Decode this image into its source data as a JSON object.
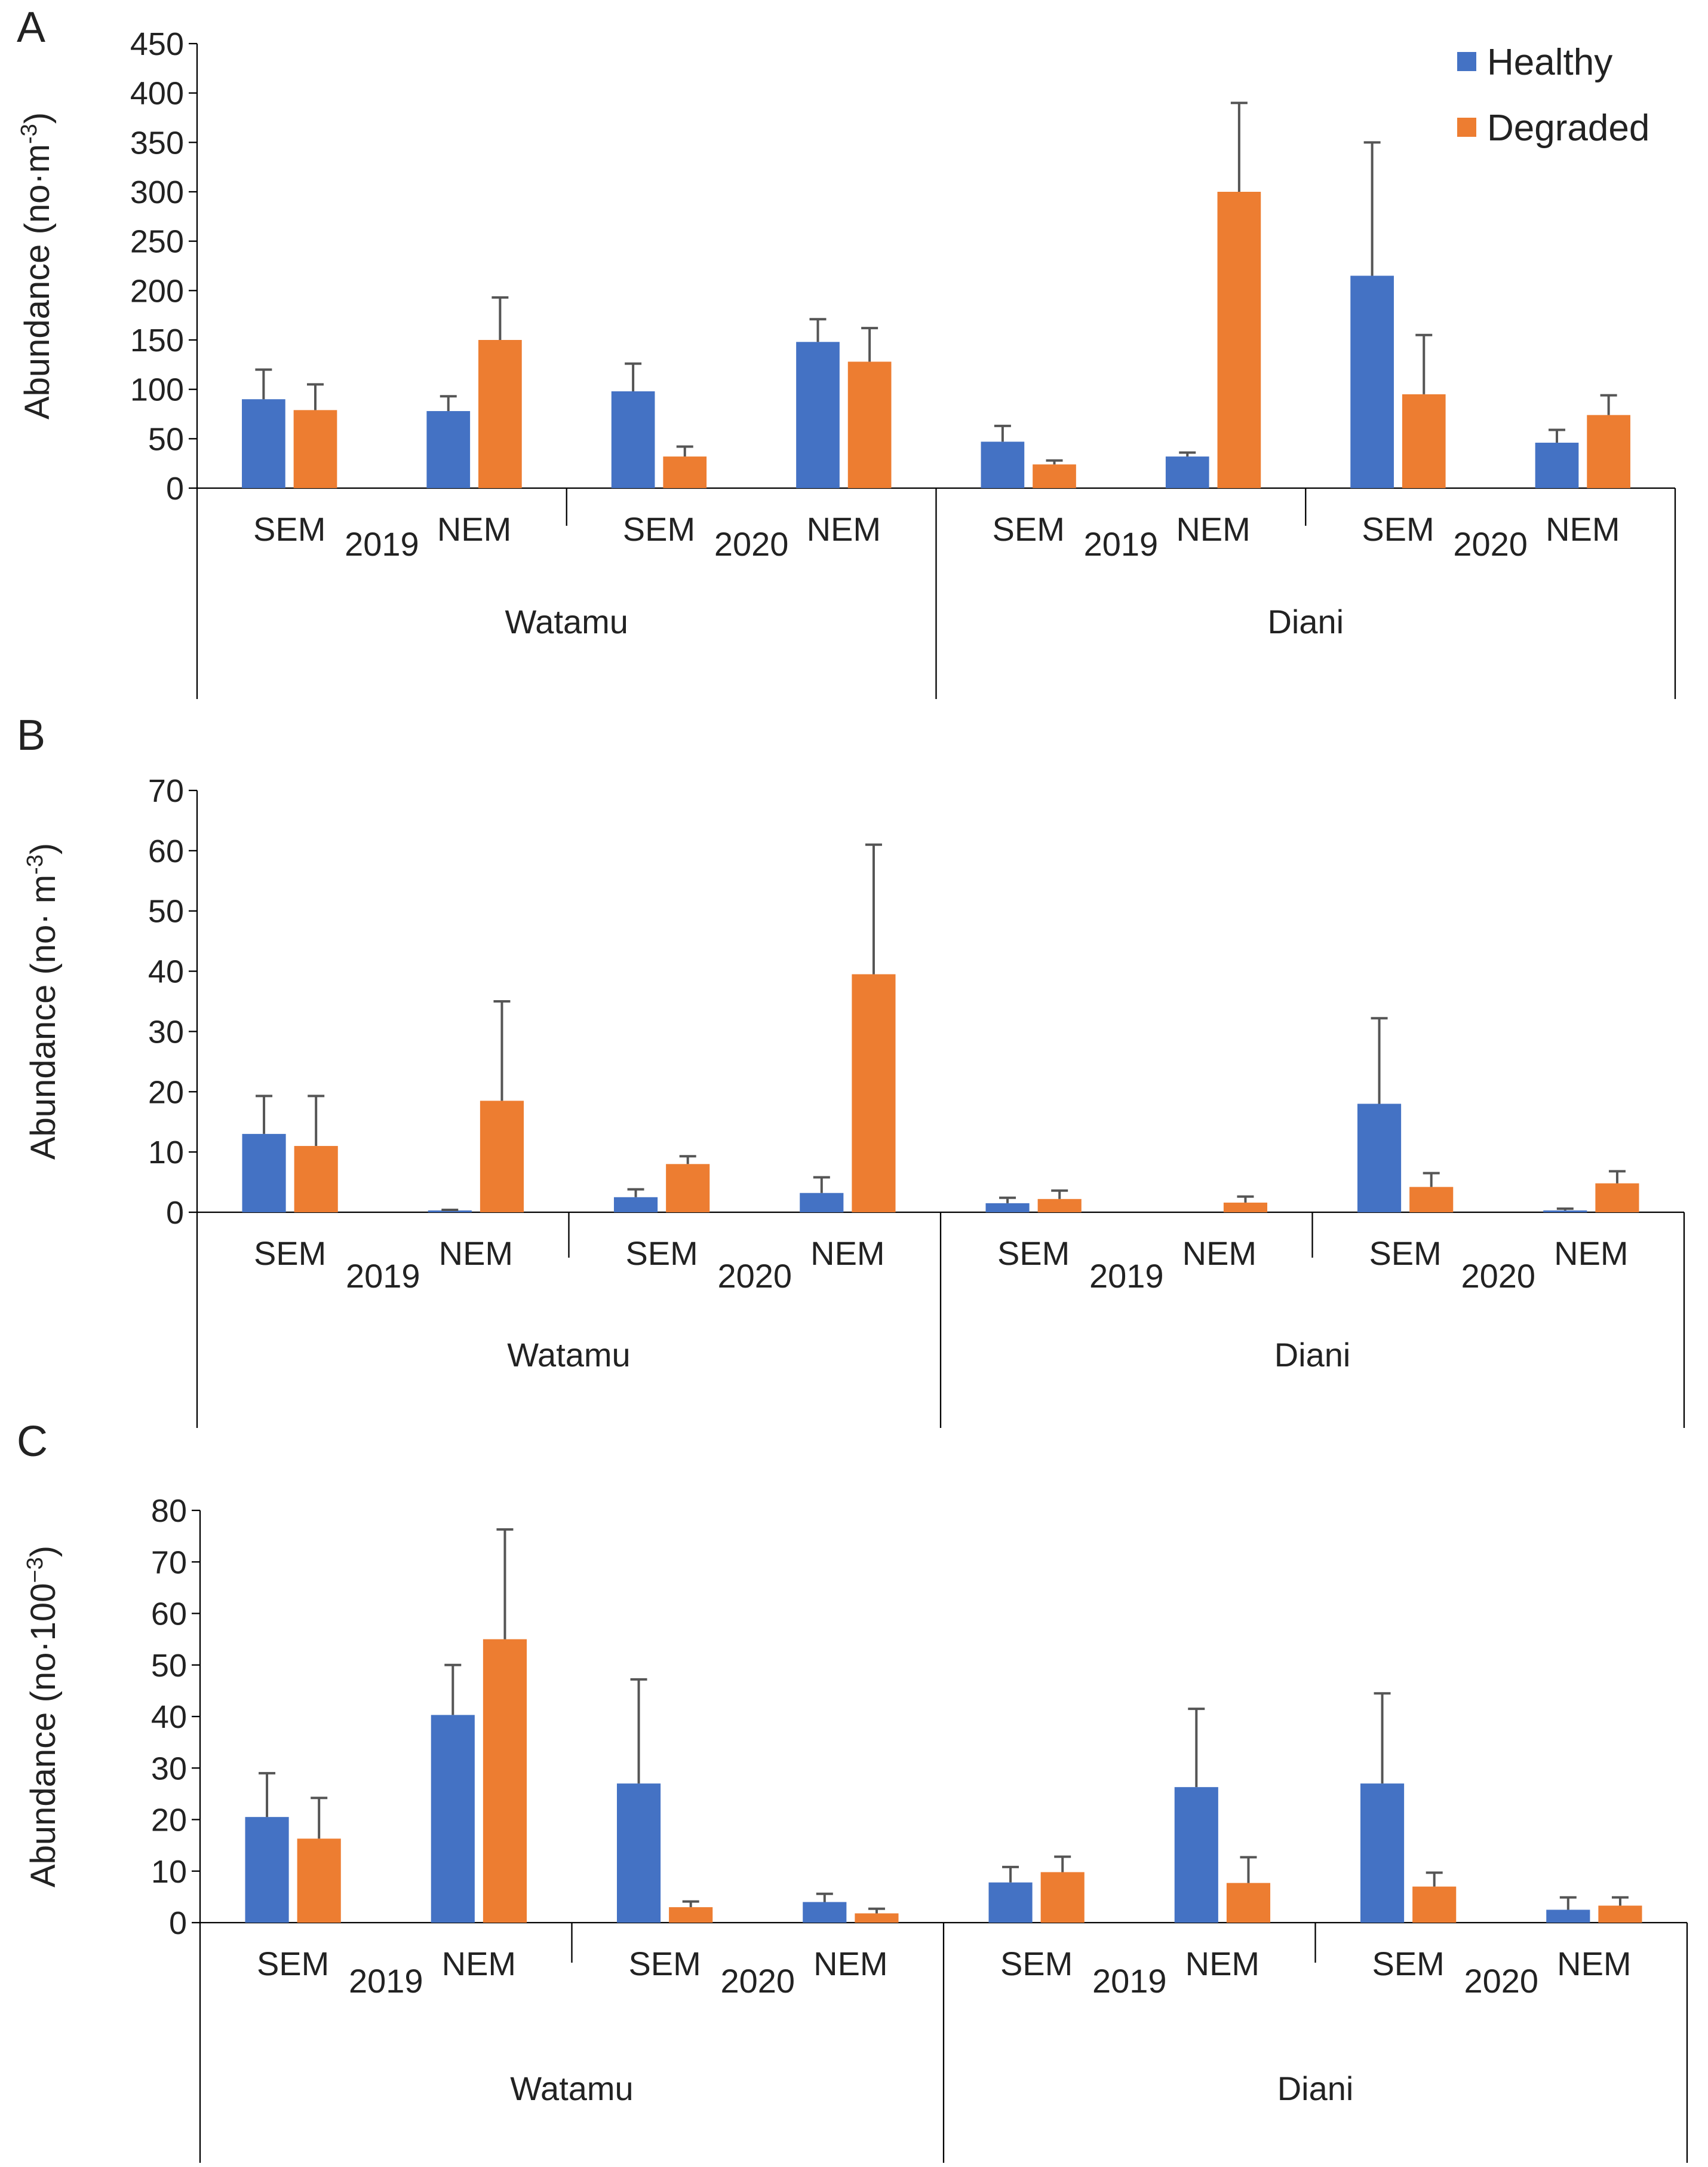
{
  "figure": {
    "legend": [
      {
        "name": "Healthy",
        "color": "#4472C4"
      },
      {
        "name": "Degraded",
        "color": "#ED7D31"
      }
    ],
    "axis_color": "#000000",
    "error_bar_color": "#555555"
  },
  "chart_data": [
    {
      "type": "bar",
      "panel_label": "A",
      "ylabel": "Abundance (no·m",
      "ylabel_sup": "-3",
      "ylabel_close": ")",
      "ylim": [
        0,
        450
      ],
      "yticks": [
        0,
        50,
        100,
        150,
        200,
        250,
        300,
        350,
        400,
        450
      ],
      "legend_position": "top-right",
      "groups": [
        {
          "site": "Watamu",
          "years": [
            {
              "year": "2019",
              "seasons": [
                {
                  "season": "SEM",
                  "healthy": 90,
                  "healthy_err": 30,
                  "degraded": 79,
                  "degraded_err": 26
                },
                {
                  "season": "NEM",
                  "healthy": 78,
                  "healthy_err": 15,
                  "degraded": 150,
                  "degraded_err": 43
                }
              ]
            },
            {
              "year": "2020",
              "seasons": [
                {
                  "season": "SEM",
                  "healthy": 98,
                  "healthy_err": 28,
                  "degraded": 32,
                  "degraded_err": 10
                },
                {
                  "season": "NEM",
                  "healthy": 148,
                  "healthy_err": 23,
                  "degraded": 128,
                  "degraded_err": 34
                }
              ]
            }
          ]
        },
        {
          "site": "Diani",
          "years": [
            {
              "year": "2019",
              "seasons": [
                {
                  "season": "SEM",
                  "healthy": 47,
                  "healthy_err": 16,
                  "degraded": 24,
                  "degraded_err": 4
                },
                {
                  "season": "NEM",
                  "healthy": 32,
                  "healthy_err": 4,
                  "degraded": 300,
                  "degraded_err": 90
                }
              ]
            },
            {
              "year": "2020",
              "seasons": [
                {
                  "season": "SEM",
                  "healthy": 215,
                  "healthy_err": 135,
                  "degraded": 95,
                  "degraded_err": 60
                },
                {
                  "season": "NEM",
                  "healthy": 46,
                  "healthy_err": 13,
                  "degraded": 74,
                  "degraded_err": 20
                }
              ]
            }
          ]
        }
      ]
    },
    {
      "type": "bar",
      "panel_label": "B",
      "ylabel": "Abundance  (no· m",
      "ylabel_sup": "-3",
      "ylabel_close": ")",
      "ylim": [
        0,
        70
      ],
      "yticks": [
        0,
        10,
        20,
        30,
        40,
        50,
        60,
        70
      ],
      "groups": [
        {
          "site": "Watamu",
          "years": [
            {
              "year": "2019",
              "seasons": [
                {
                  "season": "SEM",
                  "healthy": 13,
                  "healthy_err": 6.3,
                  "degraded": 11,
                  "degraded_err": 8.3
                },
                {
                  "season": "NEM",
                  "healthy": 0.3,
                  "healthy_err": 0.1,
                  "degraded": 18.5,
                  "degraded_err": 16.5
                }
              ]
            },
            {
              "year": "2020",
              "seasons": [
                {
                  "season": "SEM",
                  "healthy": 2.5,
                  "healthy_err": 1.3,
                  "degraded": 8,
                  "degraded_err": 1.3
                },
                {
                  "season": "NEM",
                  "healthy": 3.2,
                  "healthy_err": 2.6,
                  "degraded": 39.5,
                  "degraded_err": 21.5
                }
              ]
            }
          ]
        },
        {
          "site": "Diani",
          "years": [
            {
              "year": "2019",
              "seasons": [
                {
                  "season": "SEM",
                  "healthy": 1.5,
                  "healthy_err": 0.9,
                  "degraded": 2.2,
                  "degraded_err": 1.4
                },
                {
                  "season": "NEM",
                  "healthy": 0,
                  "healthy_err": 0,
                  "degraded": 1.6,
                  "degraded_err": 1.0
                }
              ]
            },
            {
              "year": "2020",
              "seasons": [
                {
                  "season": "SEM",
                  "healthy": 18,
                  "healthy_err": 14.2,
                  "degraded": 4.2,
                  "degraded_err": 2.3
                },
                {
                  "season": "NEM",
                  "healthy": 0.3,
                  "healthy_err": 0.3,
                  "degraded": 4.8,
                  "degraded_err": 2.0
                }
              ]
            }
          ]
        }
      ]
    },
    {
      "type": "bar",
      "panel_label": "C",
      "ylabel": "Abundance  (no·100",
      "ylabel_sup": "−3",
      "ylabel_close": ")",
      "ylim": [
        0,
        80
      ],
      "yticks": [
        0,
        10,
        20,
        30,
        40,
        50,
        60,
        70,
        80
      ],
      "groups": [
        {
          "site": "Watamu",
          "years": [
            {
              "year": "2019",
              "seasons": [
                {
                  "season": "SEM",
                  "healthy": 20.5,
                  "healthy_err": 8.5,
                  "degraded": 16.3,
                  "degraded_err": 7.9
                },
                {
                  "season": "NEM",
                  "healthy": 40.3,
                  "healthy_err": 9.7,
                  "degraded": 55,
                  "degraded_err": 21.3
                }
              ]
            },
            {
              "year": "2020",
              "seasons": [
                {
                  "season": "SEM",
                  "healthy": 27,
                  "healthy_err": 20.2,
                  "degraded": 3,
                  "degraded_err": 1.1
                },
                {
                  "season": "NEM",
                  "healthy": 4,
                  "healthy_err": 1.6,
                  "degraded": 1.8,
                  "degraded_err": 0.9
                }
              ]
            }
          ]
        },
        {
          "site": "Diani",
          "years": [
            {
              "year": "2019",
              "seasons": [
                {
                  "season": "SEM",
                  "healthy": 7.8,
                  "healthy_err": 3.0,
                  "degraded": 9.8,
                  "degraded_err": 3.0
                },
                {
                  "season": "NEM",
                  "healthy": 26.3,
                  "healthy_err": 15.2,
                  "degraded": 7.7,
                  "degraded_err": 5.0
                }
              ]
            },
            {
              "year": "2020",
              "seasons": [
                {
                  "season": "SEM",
                  "healthy": 27,
                  "healthy_err": 17.5,
                  "degraded": 7,
                  "degraded_err": 2.7
                },
                {
                  "season": "NEM",
                  "healthy": 2.5,
                  "healthy_err": 2.4,
                  "degraded": 3.3,
                  "degraded_err": 1.6
                }
              ]
            }
          ]
        }
      ]
    }
  ]
}
